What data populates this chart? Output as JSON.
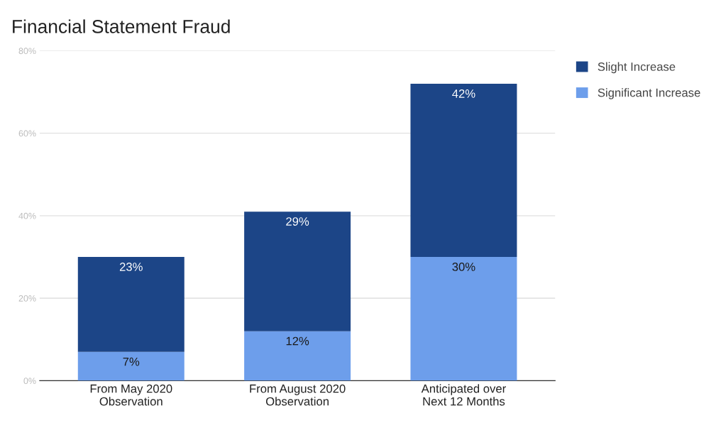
{
  "chart_data": {
    "type": "bar",
    "title": "Financial Statement Fraud",
    "stacked": true,
    "categories": [
      "From May 2020\nObservation",
      "From August 2020\nObservation",
      "Anticipated over\nNext 12 Months"
    ],
    "series": [
      {
        "name": "Significant Increase",
        "color": "#6d9eeb",
        "values": [
          7,
          12,
          30
        ],
        "value_labels": [
          "7%",
          "12%",
          "30%"
        ]
      },
      {
        "name": "Slight Increase",
        "color": "#1c4587",
        "values": [
          23,
          29,
          42
        ],
        "value_labels": [
          "23%",
          "29%",
          "42%"
        ]
      }
    ],
    "ylim": [
      0,
      80
    ],
    "yticks": [
      {
        "value": 0,
        "label": "0%"
      },
      {
        "value": 20,
        "label": "20%"
      },
      {
        "value": 40,
        "label": "40%"
      },
      {
        "value": 60,
        "label": "60%"
      },
      {
        "value": 80,
        "label": "80%"
      }
    ],
    "grid": "y",
    "legend": "top right"
  }
}
